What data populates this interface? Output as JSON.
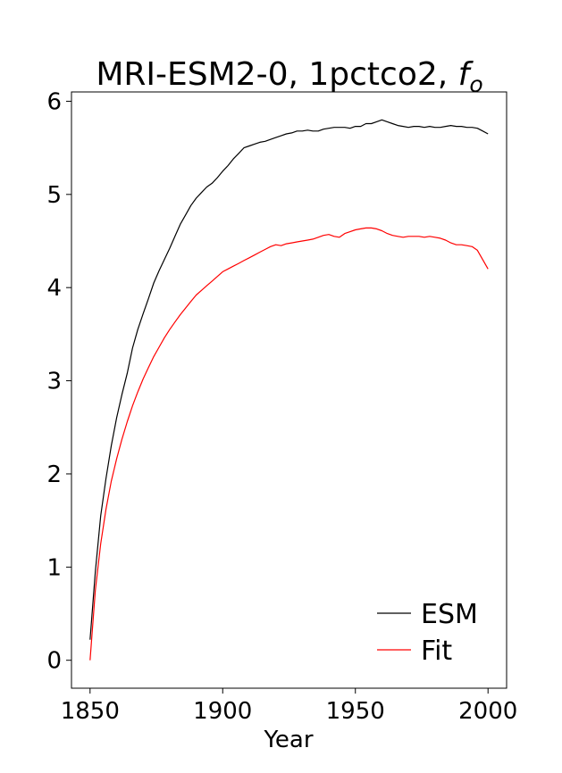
{
  "chart_data": {
    "type": "line",
    "title_main": "MRI-ESM2-0, 1pctco2, ",
    "title_var": "f",
    "title_sub": "o",
    "xlabel": "Year",
    "ylabel": "",
    "xlim": [
      1843,
      2007
    ],
    "ylim": [
      -0.3,
      6.1
    ],
    "xticks": [
      1850,
      1900,
      1950,
      2000
    ],
    "yticks": [
      0,
      1,
      2,
      3,
      4,
      5,
      6
    ],
    "grid": false,
    "legend_position": "lower-right",
    "series": [
      {
        "name": "ESM",
        "color": "#000000",
        "points": [
          [
            1850,
            0.22
          ],
          [
            1852,
            0.95
          ],
          [
            1854,
            1.55
          ],
          [
            1856,
            1.95
          ],
          [
            1858,
            2.3
          ],
          [
            1860,
            2.6
          ],
          [
            1862,
            2.85
          ],
          [
            1864,
            3.08
          ],
          [
            1866,
            3.35
          ],
          [
            1868,
            3.55
          ],
          [
            1870,
            3.72
          ],
          [
            1872,
            3.88
          ],
          [
            1874,
            4.05
          ],
          [
            1876,
            4.18
          ],
          [
            1878,
            4.3
          ],
          [
            1880,
            4.42
          ],
          [
            1882,
            4.55
          ],
          [
            1884,
            4.68
          ],
          [
            1886,
            4.78
          ],
          [
            1888,
            4.88
          ],
          [
            1890,
            4.96
          ],
          [
            1892,
            5.02
          ],
          [
            1894,
            5.08
          ],
          [
            1896,
            5.12
          ],
          [
            1898,
            5.18
          ],
          [
            1900,
            5.25
          ],
          [
            1902,
            5.31
          ],
          [
            1904,
            5.38
          ],
          [
            1906,
            5.44
          ],
          [
            1908,
            5.5
          ],
          [
            1910,
            5.52
          ],
          [
            1912,
            5.54
          ],
          [
            1914,
            5.56
          ],
          [
            1916,
            5.57
          ],
          [
            1918,
            5.59
          ],
          [
            1920,
            5.61
          ],
          [
            1922,
            5.63
          ],
          [
            1924,
            5.65
          ],
          [
            1926,
            5.66
          ],
          [
            1928,
            5.68
          ],
          [
            1930,
            5.68
          ],
          [
            1932,
            5.69
          ],
          [
            1934,
            5.68
          ],
          [
            1936,
            5.68
          ],
          [
            1938,
            5.7
          ],
          [
            1940,
            5.71
          ],
          [
            1942,
            5.72
          ],
          [
            1944,
            5.72
          ],
          [
            1946,
            5.72
          ],
          [
            1948,
            5.71
          ],
          [
            1950,
            5.73
          ],
          [
            1952,
            5.73
          ],
          [
            1954,
            5.76
          ],
          [
            1956,
            5.76
          ],
          [
            1958,
            5.78
          ],
          [
            1960,
            5.8
          ],
          [
            1962,
            5.78
          ],
          [
            1964,
            5.76
          ],
          [
            1966,
            5.74
          ],
          [
            1968,
            5.73
          ],
          [
            1970,
            5.72
          ],
          [
            1972,
            5.73
          ],
          [
            1974,
            5.73
          ],
          [
            1976,
            5.72
          ],
          [
            1978,
            5.73
          ],
          [
            1980,
            5.72
          ],
          [
            1982,
            5.72
          ],
          [
            1984,
            5.73
          ],
          [
            1986,
            5.74
          ],
          [
            1988,
            5.73
          ],
          [
            1990,
            5.73
          ],
          [
            1992,
            5.72
          ],
          [
            1994,
            5.72
          ],
          [
            1996,
            5.71
          ],
          [
            1998,
            5.68
          ],
          [
            2000,
            5.65
          ]
        ]
      },
      {
        "name": "Fit",
        "color": "#ff0000",
        "points": [
          [
            1850,
            0.0
          ],
          [
            1852,
            0.75
          ],
          [
            1854,
            1.25
          ],
          [
            1856,
            1.62
          ],
          [
            1858,
            1.92
          ],
          [
            1860,
            2.16
          ],
          [
            1862,
            2.37
          ],
          [
            1864,
            2.56
          ],
          [
            1866,
            2.73
          ],
          [
            1868,
            2.88
          ],
          [
            1870,
            3.02
          ],
          [
            1872,
            3.14
          ],
          [
            1874,
            3.26
          ],
          [
            1876,
            3.36
          ],
          [
            1878,
            3.46
          ],
          [
            1880,
            3.55
          ],
          [
            1882,
            3.63
          ],
          [
            1884,
            3.71
          ],
          [
            1886,
            3.78
          ],
          [
            1888,
            3.85
          ],
          [
            1890,
            3.92
          ],
          [
            1892,
            3.97
          ],
          [
            1894,
            4.02
          ],
          [
            1896,
            4.07
          ],
          [
            1898,
            4.12
          ],
          [
            1900,
            4.17
          ],
          [
            1902,
            4.2
          ],
          [
            1904,
            4.23
          ],
          [
            1906,
            4.26
          ],
          [
            1908,
            4.29
          ],
          [
            1910,
            4.32
          ],
          [
            1912,
            4.35
          ],
          [
            1914,
            4.38
          ],
          [
            1916,
            4.41
          ],
          [
            1918,
            4.44
          ],
          [
            1920,
            4.46
          ],
          [
            1922,
            4.45
          ],
          [
            1924,
            4.47
          ],
          [
            1926,
            4.48
          ],
          [
            1928,
            4.49
          ],
          [
            1930,
            4.5
          ],
          [
            1932,
            4.51
          ],
          [
            1934,
            4.52
          ],
          [
            1936,
            4.54
          ],
          [
            1938,
            4.56
          ],
          [
            1940,
            4.57
          ],
          [
            1942,
            4.55
          ],
          [
            1944,
            4.54
          ],
          [
            1946,
            4.58
          ],
          [
            1948,
            4.6
          ],
          [
            1950,
            4.62
          ],
          [
            1952,
            4.63
          ],
          [
            1954,
            4.64
          ],
          [
            1956,
            4.64
          ],
          [
            1958,
            4.63
          ],
          [
            1960,
            4.61
          ],
          [
            1962,
            4.58
          ],
          [
            1964,
            4.56
          ],
          [
            1966,
            4.55
          ],
          [
            1968,
            4.54
          ],
          [
            1970,
            4.55
          ],
          [
            1972,
            4.55
          ],
          [
            1974,
            4.55
          ],
          [
            1976,
            4.54
          ],
          [
            1978,
            4.55
          ],
          [
            1980,
            4.54
          ],
          [
            1982,
            4.53
          ],
          [
            1984,
            4.51
          ],
          [
            1986,
            4.48
          ],
          [
            1988,
            4.46
          ],
          [
            1990,
            4.46
          ],
          [
            1992,
            4.45
          ],
          [
            1994,
            4.44
          ],
          [
            1996,
            4.4
          ],
          [
            1998,
            4.3
          ],
          [
            2000,
            4.2
          ]
        ]
      }
    ]
  }
}
